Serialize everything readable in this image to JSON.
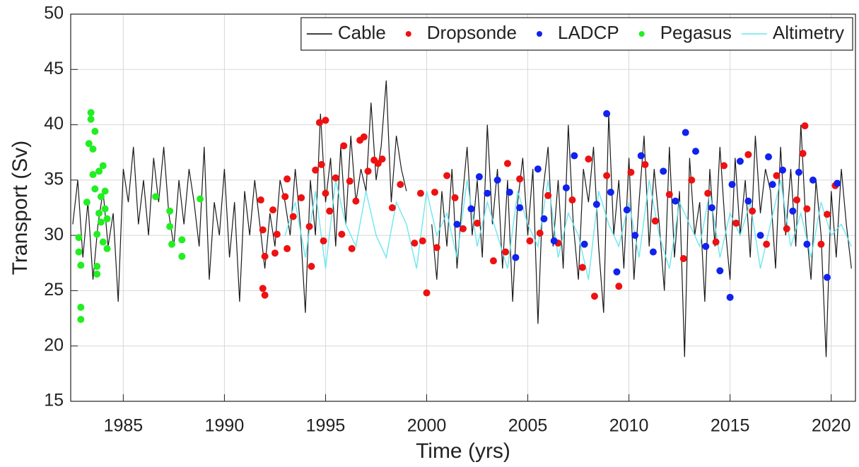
{
  "chart_data": {
    "type": "line",
    "xlabel": "Time (yrs)",
    "ylabel": "Transport (Sv)",
    "xlim": [
      1982.4,
      2021.2
    ],
    "ylim": [
      15,
      50
    ],
    "xticks": [
      1985,
      1990,
      1995,
      2000,
      2005,
      2010,
      2015,
      2020
    ],
    "yticks": [
      15,
      20,
      25,
      30,
      35,
      40,
      45,
      50
    ],
    "grid": true,
    "legend": "northeast",
    "series": [
      {
        "name": "Cable",
        "type": "line",
        "color": "#000000",
        "x": [
          1982.5,
          1982.75,
          1983,
          1983.25,
          1983.5,
          1983.75,
          1984,
          1984.25,
          1984.5,
          1984.75,
          1985,
          1985.25,
          1985.5,
          1985.75,
          1986,
          1986.25,
          1986.5,
          1986.75,
          1987,
          1987.25,
          1987.5,
          1987.75,
          1988,
          1988.25,
          1988.5,
          1988.75,
          1989,
          1989.25,
          1989.5,
          1989.75,
          1990,
          1990.25,
          1990.5,
          1990.75,
          1991,
          1991.25,
          1991.5,
          1991.75,
          1992,
          1992.25,
          1992.5,
          1992.75,
          1993,
          1993.25,
          1993.5,
          1993.75,
          1994,
          1994.25,
          1994.5,
          1994.75,
          1995,
          1995.25,
          1995.5,
          1995.75,
          1996,
          1996.25,
          1996.5,
          1996.75,
          1997,
          1997.25,
          1997.5,
          1997.75,
          1998,
          1998.25,
          1998.5,
          1998.75,
          1999,
          1999.25,
          1999.5,
          1999.75,
          2000,
          2000.25,
          2000.5,
          2000.75,
          2001,
          2001.25,
          2001.5,
          2001.75,
          2002,
          2002.25,
          2002.5,
          2002.75,
          2003,
          2003.25,
          2003.5,
          2003.75,
          2004,
          2004.25,
          2004.5,
          2004.75,
          2005,
          2005.25,
          2005.5,
          2005.75,
          2006,
          2006.25,
          2006.5,
          2006.75,
          2007,
          2007.25,
          2007.5,
          2007.75,
          2008,
          2008.25,
          2008.5,
          2008.75,
          2009,
          2009.25,
          2009.5,
          2009.75,
          2010,
          2010.25,
          2010.5,
          2010.75,
          2011,
          2011.25,
          2011.5,
          2011.75,
          2012,
          2012.25,
          2012.5,
          2012.75,
          2013,
          2013.25,
          2013.5,
          2013.75,
          2014,
          2014.25,
          2014.5,
          2014.75,
          2015,
          2015.25,
          2015.5,
          2015.75,
          2016,
          2016.25,
          2016.5,
          2016.75,
          2017,
          2017.25,
          2017.5,
          2017.75,
          2018,
          2018.25,
          2018.5,
          2018.75,
          2019,
          2019.25,
          2019.5,
          2019.75,
          2020,
          2020.25,
          2020.5,
          2020.75,
          2021
        ],
        "values": [
          31,
          35,
          28,
          33,
          26,
          31,
          34,
          29,
          32,
          24,
          36,
          33,
          38,
          31,
          35,
          30,
          37,
          33,
          38,
          32,
          29,
          35,
          31,
          36,
          33,
          29,
          38,
          26,
          33,
          30,
          36,
          28,
          33,
          24,
          34,
          30,
          35,
          31,
          27,
          32,
          29,
          35,
          33,
          30,
          36,
          31,
          23,
          35,
          30,
          41,
          33,
          37,
          29,
          38,
          31,
          39,
          33,
          36,
          34,
          42,
          35,
          38,
          44,
          33,
          39,
          36,
          34,
          null,
          null,
          null,
          null,
          31,
          26,
          34,
          29,
          36,
          27,
          33,
          38,
          30,
          35,
          28,
          40,
          31,
          36,
          27,
          35,
          24,
          33,
          37,
          30,
          36,
          22,
          34,
          38,
          29,
          35,
          27,
          40,
          31,
          26,
          36,
          33,
          38,
          29,
          23,
          41,
          30,
          35,
          27,
          37,
          26,
          33,
          39,
          29,
          36,
          31,
          25,
          38,
          28,
          34,
          19,
          37,
          30,
          33,
          24,
          36,
          29,
          38,
          31,
          26,
          37,
          30,
          35,
          28,
          39,
          32,
          36,
          34,
          27,
          38,
          30,
          36,
          29,
          40,
          31,
          26,
          35,
          30,
          19,
          34,
          28,
          36,
          31,
          27
        ]
      },
      {
        "name": "Dropsonde",
        "type": "scatter",
        "color": "#ee1111",
        "x": [
          1991.8,
          1991.9,
          1991.9,
          1992.0,
          1992.0,
          1992.4,
          1992.5,
          1992.6,
          1993.0,
          1993.1,
          1993.1,
          1993.4,
          1993.8,
          1994.2,
          1994.3,
          1994.5,
          1994.7,
          1994.8,
          1994.9,
          1995.0,
          1995.0,
          1995.2,
          1995.5,
          1995.8,
          1995.9,
          1996.2,
          1996.3,
          1996.5,
          1996.7,
          1996.9,
          1997.1,
          1997.4,
          1997.6,
          1997.8,
          1998.3,
          1998.7,
          1999.4,
          1999.7,
          1999.8,
          2000.0,
          2000.4,
          2000.5,
          2001.0,
          2001.4,
          2001.8,
          2002.5,
          2003.3,
          2003.9,
          2004.0,
          2004.6,
          2005.1,
          2005.6,
          2006.0,
          2006.5,
          2007.2,
          2007.7,
          2008.0,
          2008.3,
          2008.9,
          2009.5,
          2010.1,
          2010.8,
          2011.3,
          2012.0,
          2012.7,
          2013.1,
          2013.9,
          2014.3,
          2014.7,
          2015.3,
          2015.9,
          2016.1,
          2016.8,
          2017.3,
          2017.8,
          2018.3,
          2018.7,
          2018.6,
          2018.8,
          2019.5,
          2019.8,
          2020.2
        ],
        "values": [
          33.2,
          30.5,
          25.2,
          24.6,
          28.1,
          32.3,
          28.4,
          30.1,
          33.5,
          35.1,
          28.8,
          31.7,
          33.4,
          30.8,
          27.2,
          35.9,
          40.2,
          36.4,
          29.5,
          40.4,
          33.8,
          32.2,
          35.2,
          30.1,
          38.1,
          34.9,
          28.8,
          33.1,
          38.6,
          38.9,
          35.8,
          36.8,
          36.5,
          36.9,
          32.5,
          34.6,
          29.3,
          33.8,
          29.5,
          24.8,
          33.9,
          28.9,
          35.4,
          33.4,
          30.6,
          31.1,
          27.7,
          28.5,
          36.5,
          35.1,
          29.5,
          30.2,
          33.6,
          29.3,
          33.2,
          27.1,
          36.9,
          24.5,
          35.4,
          25.4,
          35.7,
          36.4,
          31.3,
          33.7,
          27.9,
          35,
          33.8,
          29.4,
          36.3,
          31.1,
          37.3,
          32.2,
          29.2,
          35.4,
          30.6,
          33.2,
          39.9,
          37.4,
          32.4,
          29.2,
          31.9,
          34.5
        ]
      },
      {
        "name": "LADCP",
        "type": "scatter",
        "color": "#1122ee",
        "x": [
          2001.5,
          2002.2,
          2002.6,
          2003.0,
          2003.5,
          2004.1,
          2004.4,
          2004.6,
          2005.5,
          2005.8,
          2006.3,
          2006.9,
          2007.3,
          2007.8,
          2008.4,
          2008.9,
          2009.1,
          2009.4,
          2009.9,
          2010.3,
          2010.6,
          2011.2,
          2011.7,
          2012.3,
          2012.8,
          2013.3,
          2013.8,
          2014.1,
          2014.5,
          2015.0,
          2015.1,
          2015.5,
          2015.9,
          2016.5,
          2016.9,
          2017.1,
          2017.6,
          2018.1,
          2018.4,
          2018.8,
          2019.1,
          2019.8,
          2020.3
        ],
        "values": [
          31,
          32.4,
          35.3,
          33.8,
          35,
          33.9,
          28,
          32.5,
          36,
          31.5,
          29.5,
          34.3,
          37.2,
          29.2,
          32.8,
          41,
          33.9,
          26.7,
          32.3,
          30,
          37.2,
          28.5,
          35.8,
          33.1,
          39.3,
          37.6,
          29,
          32.5,
          26.8,
          24.4,
          34.6,
          36.7,
          33.1,
          30,
          37.1,
          34.6,
          35.9,
          32.2,
          35.7,
          29.2,
          35,
          26.2,
          34.7
        ]
      },
      {
        "name": "Pegasus",
        "type": "scatter",
        "color": "#22ee22",
        "x": [
          1982.8,
          1982.8,
          1982.9,
          1982.9,
          1982.9,
          1983.2,
          1983.3,
          1983.4,
          1983.4,
          1983.5,
          1983.5,
          1983.6,
          1983.6,
          1983.7,
          1983.7,
          1983.7,
          1983.8,
          1983.8,
          1983.9,
          1983.9,
          1984.0,
          1984.0,
          1984.1,
          1984.1,
          1984.2,
          1984.2,
          1986.6,
          1987.3,
          1987.3,
          1987.4,
          1987.9,
          1987.9,
          1988.8
        ],
        "values": [
          29.8,
          28.5,
          27.3,
          23.5,
          22.4,
          33,
          38.3,
          41.1,
          40.5,
          37.8,
          35.5,
          39.4,
          34.2,
          30.1,
          27.2,
          26.5,
          32,
          35.8,
          33.5,
          31.2,
          36.3,
          29.4,
          34,
          32.4,
          28.8,
          31.5,
          33.5,
          32.2,
          30.8,
          29.2,
          29.6,
          28.1,
          33.3
        ]
      },
      {
        "name": "Altimetry",
        "type": "line",
        "color": "#66e6ee",
        "x": [
          1993,
          1993.5,
          1994,
          1994.5,
          1995,
          1995.5,
          1996,
          1996.5,
          1997,
          1997.5,
          1998,
          1998.5,
          1999,
          1999.5,
          2000,
          2000.5,
          2001,
          2001.5,
          2002,
          2002.5,
          2003,
          2003.5,
          2004,
          2004.5,
          2005,
          2005.5,
          2006,
          2006.5,
          2007,
          2007.5,
          2008,
          2008.5,
          2009,
          2009.5,
          2010,
          2010.5,
          2011,
          2011.5,
          2012,
          2012.5,
          2013,
          2013.5,
          2014,
          2014.5,
          2015,
          2015.5,
          2016,
          2016.5,
          2017,
          2017.5,
          2018,
          2018.5,
          2019,
          2019.5,
          2020,
          2020.5,
          2021
        ],
        "values": [
          30,
          33,
          28,
          34,
          27,
          35,
          31,
          29,
          34,
          30,
          28,
          33,
          31,
          27,
          34,
          30,
          32,
          28,
          35,
          29,
          33,
          30,
          27,
          34,
          31,
          29,
          35,
          28,
          32,
          30,
          26,
          34,
          31,
          29,
          33,
          28,
          35,
          30,
          27,
          33,
          31,
          29,
          34,
          28,
          32,
          30,
          33,
          27,
          31,
          35,
          29,
          32,
          28,
          33,
          30,
          31,
          29
        ]
      }
    ]
  }
}
